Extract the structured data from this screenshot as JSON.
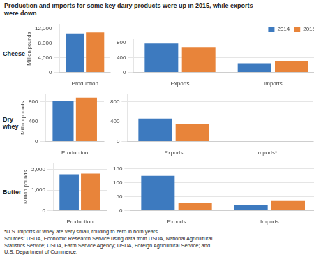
{
  "title": "Production and imports for some key dairy products were up in 2015, while exports\nwere down",
  "annotations": [
    "*U.S. imports of whey are very small, rouding to zero in both years.\nSources: USDA, Economic Research Service using data from USDA, National Agricultural\nStatistics Service; USDA, Farm Service Agency; USDA, Foreign Agricultural Service; and\nU.S. Department of Commerce."
  ],
  "chart_data": [
    {
      "type": "bar",
      "title": "Cheese",
      "y_label": "Million pounds",
      "categories": [
        "Production"
      ],
      "series": [
        {
          "name": "2014",
          "color": "#3d7abf",
          "values": [
            10700
          ]
        },
        {
          "name": "2015",
          "color": "#e8843a",
          "values": [
            11000
          ]
        }
      ],
      "ylim": [
        0,
        13000
      ],
      "yticks": [
        0,
        {
          "value": 4000,
          "label": "4,000"
        },
        {
          "value": 8000,
          "label": "8,000"
        },
        {
          "value": 12000,
          "label": "12,000"
        }
      ],
      "grid": true
    },
    {
      "type": "bar",
      "categories": [
        "Exports",
        "Imports"
      ],
      "series": [
        {
          "name": "2014",
          "color": "#3d7abf",
          "values": [
            780,
            250
          ]
        },
        {
          "name": "2015",
          "color": "#e8843a",
          "values": [
            670,
            310
          ]
        }
      ],
      "ylim": [
        0,
        900
      ],
      "yticks": [
        0,
        400,
        800
      ],
      "grid": true,
      "legend": "upper right"
    },
    {
      "type": "bar",
      "title": "Dry whey",
      "y_label": "Million pounds",
      "categories": [
        "Production"
      ],
      "series": [
        {
          "name": "2014",
          "color": "#3d7abf",
          "values": [
            820
          ]
        },
        {
          "name": "2015",
          "color": "#e8843a",
          "values": [
            880
          ]
        }
      ],
      "ylim": [
        0,
        950
      ],
      "yticks": [
        0,
        400,
        800
      ],
      "grid": true
    },
    {
      "type": "bar",
      "categories": [
        "Exports",
        "Imports*"
      ],
      "series": [
        {
          "name": "2014",
          "color": "#3d7abf",
          "values": [
            460,
            0
          ]
        },
        {
          "name": "2015",
          "color": "#e8843a",
          "values": [
            360,
            0
          ]
        }
      ],
      "ylim": [
        0,
        950
      ],
      "yticks": [
        0,
        400,
        800
      ],
      "grid": true
    },
    {
      "type": "bar",
      "title": "Butter",
      "y_label": "Million pounds",
      "categories": [
        "Production"
      ],
      "series": [
        {
          "name": "2014",
          "color": "#3d7abf",
          "values": [
            1770
          ]
        },
        {
          "name": "2015",
          "color": "#e8843a",
          "values": [
            1800
          ]
        }
      ],
      "ylim": [
        0,
        2300
      ],
      "yticks": [
        0,
        {
          "value": 1000,
          "label": "1,000"
        },
        {
          "value": 2000,
          "label": "2,000"
        }
      ],
      "grid": true
    },
    {
      "type": "bar",
      "categories": [
        "Exports",
        "Imports"
      ],
      "series": [
        {
          "name": "2014",
          "color": "#3d7abf",
          "values": [
            125,
            20
          ]
        },
        {
          "name": "2015",
          "color": "#e8843a",
          "values": [
            28,
            35
          ]
        }
      ],
      "ylim": [
        0,
        170
      ],
      "yticks": [
        0,
        50,
        100,
        150
      ],
      "grid": true
    }
  ]
}
